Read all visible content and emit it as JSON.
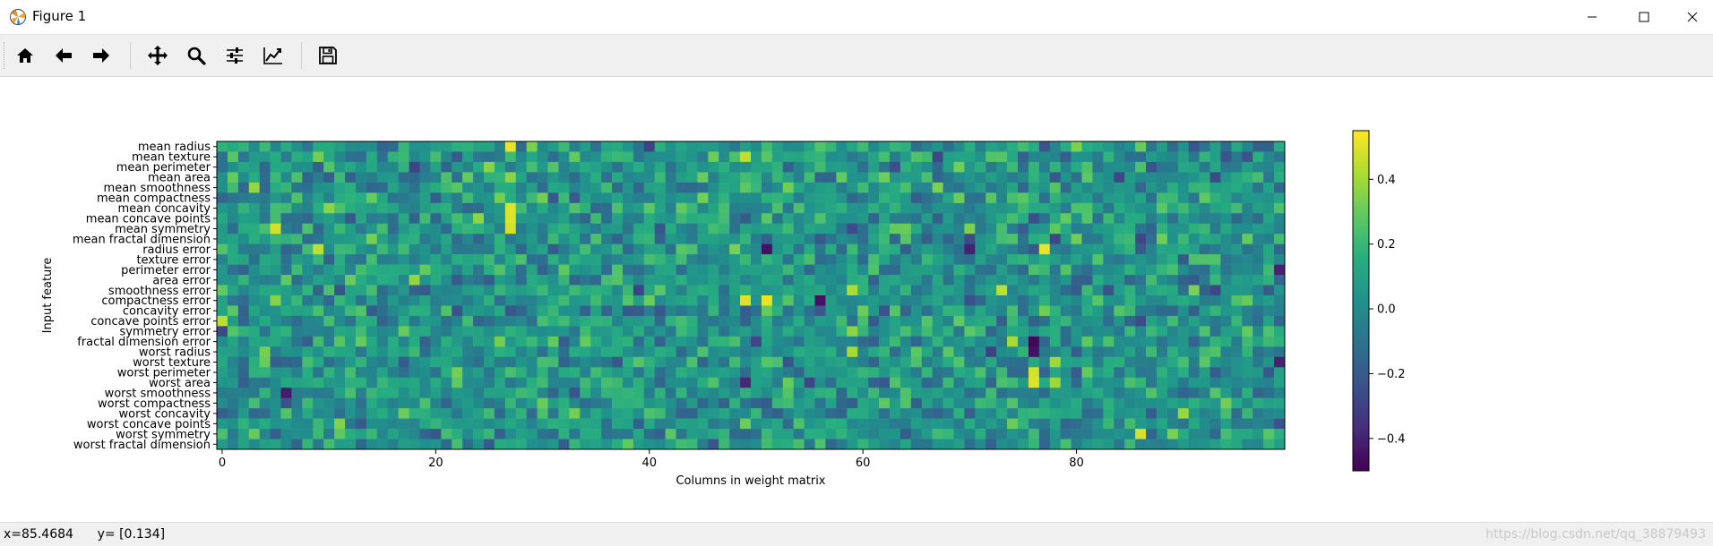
{
  "window": {
    "title": "Figure 1"
  },
  "toolbar": {
    "buttons": [
      {
        "name": "home",
        "icon": "home-icon"
      },
      {
        "name": "back",
        "icon": "arrow-left-icon"
      },
      {
        "name": "forward",
        "icon": "arrow-right-icon"
      },
      {
        "name": "pan",
        "icon": "move-icon"
      },
      {
        "name": "zoom",
        "icon": "magnifier-icon"
      },
      {
        "name": "subplots",
        "icon": "sliders-icon"
      },
      {
        "name": "edit-axes",
        "icon": "line-chart-icon"
      },
      {
        "name": "save",
        "icon": "floppy-icon"
      }
    ]
  },
  "status": {
    "coords": "x=85.4684      y= [0.134]"
  },
  "watermark": "https://blog.csdn.net/qq_38879493",
  "chart_data": {
    "type": "heatmap",
    "colormap": "viridis",
    "xlabel": "Columns in weight matrix",
    "ylabel": "Input feature",
    "x_ticks": [
      0,
      20,
      40,
      60,
      80
    ],
    "x_tick_labels": [
      "0",
      "20",
      "40",
      "60",
      "80"
    ],
    "x_range": [
      -0.5,
      99.5
    ],
    "n_columns": 100,
    "rows": [
      "mean radius",
      "mean texture",
      "mean perimeter",
      "mean area",
      "mean smoothness",
      "mean compactness",
      "mean concavity",
      "mean concave points",
      "mean symmetry",
      "mean fractal dimension",
      "radius error",
      "texture error",
      "perimeter error",
      "area error",
      "smoothness error",
      "compactness error",
      "concavity error",
      "concave points error",
      "symmetry error",
      "fractal dimension error",
      "worst radius",
      "worst texture",
      "worst perimeter",
      "worst area",
      "worst smoothness",
      "worst compactness",
      "worst concavity",
      "worst concave points",
      "worst symmetry",
      "worst fractal dimension"
    ],
    "colorbar": {
      "range": [
        -0.5,
        0.55
      ],
      "ticks": [
        0.4,
        0.2,
        0.0,
        -0.2,
        -0.4
      ],
      "tick_labels": [
        "0.4",
        "0.2",
        "0.0",
        "−0.2",
        "−0.4"
      ]
    },
    "value_range": [
      -0.5,
      0.55
    ],
    "highlights": [
      {
        "row": 0,
        "col": 27,
        "value": 0.52
      },
      {
        "row": 6,
        "col": 27,
        "value": 0.5
      },
      {
        "row": 7,
        "col": 27,
        "value": 0.5
      },
      {
        "row": 8,
        "col": 27,
        "value": 0.48
      },
      {
        "row": 8,
        "col": 5,
        "value": 0.48
      },
      {
        "row": 10,
        "col": 9,
        "value": 0.45
      },
      {
        "row": 10,
        "col": 77,
        "value": 0.52
      },
      {
        "row": 15,
        "col": 49,
        "value": 0.5
      },
      {
        "row": 15,
        "col": 51,
        "value": 0.52
      },
      {
        "row": 15,
        "col": 56,
        "value": -0.45
      },
      {
        "row": 10,
        "col": 51,
        "value": -0.45
      },
      {
        "row": 10,
        "col": 70,
        "value": -0.4
      },
      {
        "row": 19,
        "col": 76,
        "value": -0.48
      },
      {
        "row": 20,
        "col": 76,
        "value": -0.45
      },
      {
        "row": 22,
        "col": 76,
        "value": 0.48
      },
      {
        "row": 23,
        "col": 76,
        "value": 0.5
      },
      {
        "row": 23,
        "col": 49,
        "value": -0.38
      },
      {
        "row": 28,
        "col": 86,
        "value": 0.48
      },
      {
        "row": 17,
        "col": 0,
        "value": 0.45
      },
      {
        "row": 21,
        "col": 78,
        "value": 0.4
      },
      {
        "row": 14,
        "col": 73,
        "value": 0.45
      },
      {
        "row": 1,
        "col": 49,
        "value": 0.45
      },
      {
        "row": 24,
        "col": 6,
        "value": -0.42
      },
      {
        "row": 21,
        "col": 99,
        "value": -0.4
      },
      {
        "row": 12,
        "col": 99,
        "value": -0.4
      }
    ]
  }
}
